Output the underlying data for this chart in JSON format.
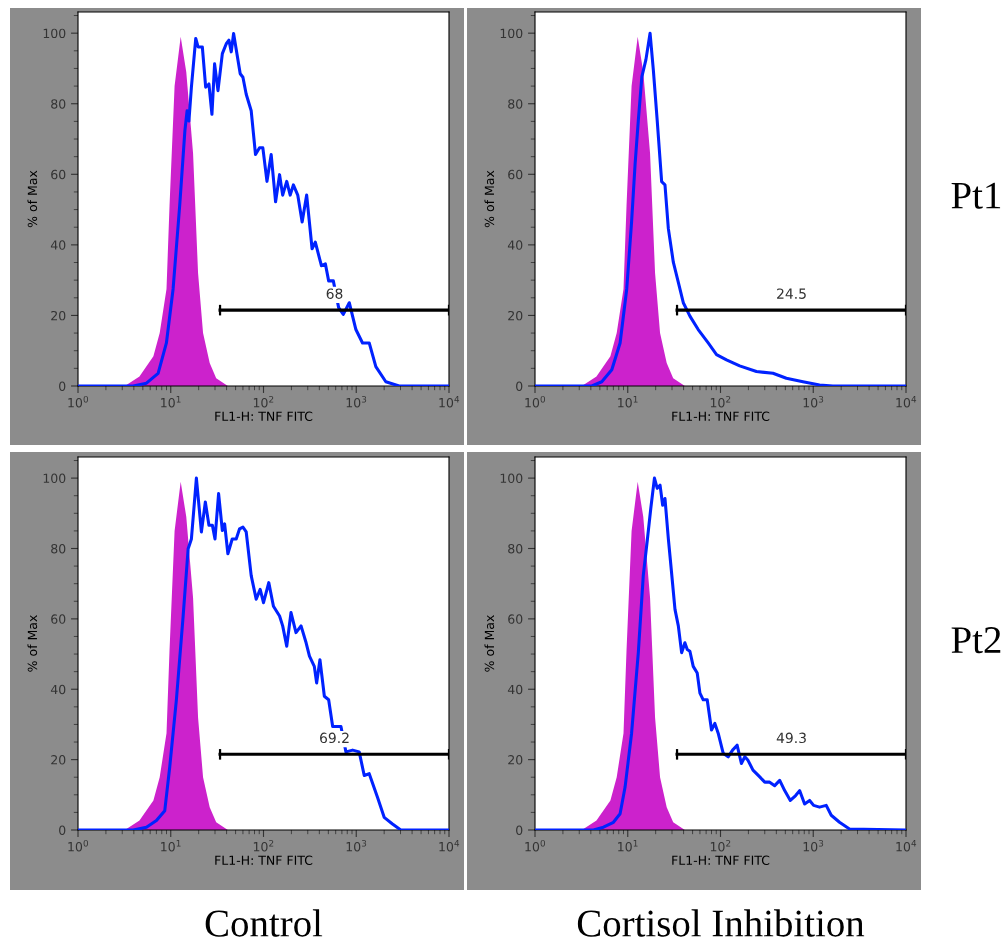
{
  "chart_data": [
    {
      "type": "line",
      "xlabel": "FL1-H: TNF FITC",
      "ylabel": "% of Max",
      "log": "x",
      "xlim": [
        1,
        10000
      ],
      "ylim": [
        0,
        106
      ],
      "xticks": [
        {
          "value": 1,
          "label": "10$^{0}$"
        },
        {
          "value": 10,
          "label": "10$^{1}$"
        },
        {
          "value": 100,
          "label": "10$^{2}$"
        },
        {
          "value": 1000,
          "label": "10$^{3}$"
        },
        {
          "value": 10000,
          "label": "10$^{4}$"
        }
      ],
      "yticks": [
        0,
        20,
        40,
        60,
        80,
        100
      ],
      "annotations": [
        "68"
      ],
      "series": [
        {
          "type": "area",
          "color": "#cc22cc",
          "x": [
            3.2,
            4.6,
            6.5,
            7.6,
            9.0,
            9.7,
            11.0,
            12.8,
            14.7,
            17.4,
            19.7,
            22.3,
            26.3,
            30.9,
            41.3
          ],
          "values": [
            0,
            2.7,
            8.4,
            15,
            27.5,
            51,
            85,
            99,
            89,
            66,
            32,
            15,
            6.5,
            2.2,
            0
          ]
        },
        {
          "type": "line",
          "color": "#0022ff",
          "x": [
            1,
            3.94,
            5.47,
            7.31,
            8.98,
            10.6,
            12.5,
            14.2,
            15.0,
            15.7,
            16.7,
            18.6,
            19.7,
            21.9,
            23.8,
            25.8,
            27.8,
            29.7,
            32.3,
            36.0,
            39.7,
            42.4,
            44.9,
            47.6,
            56.1,
            60.0,
            65.1,
            73.7,
            82.0,
            90.6,
            98.4,
            109,
            121,
            135,
            149,
            161,
            178,
            194,
            210,
            234,
            261,
            292,
            334,
            362,
            394,
            421,
            465,
            504,
            566,
            646,
            725,
            841,
            991,
            1169,
            1380,
            1626,
            2084,
            2900,
            10000
          ],
          "values": [
            0,
            0,
            0.8,
            3.6,
            12.2,
            27.5,
            51.3,
            72.3,
            78,
            75.1,
            84.7,
            98.5,
            96.1,
            96.1,
            84.7,
            85.6,
            77,
            91.3,
            83.7,
            94.2,
            97,
            98,
            94.7,
            99.9,
            88.5,
            87.5,
            82.7,
            78,
            65.6,
            67.5,
            67.5,
            58,
            65.6,
            52.2,
            59.9,
            54.1,
            58,
            54.1,
            57,
            54.1,
            46.5,
            54.1,
            38.9,
            40.8,
            37,
            34.1,
            34.6,
            29.8,
            29.8,
            22.2,
            20.3,
            23.6,
            16,
            12.2,
            12.2,
            5.5,
            1.2,
            0,
            0
          ]
        },
        {
          "type": "line",
          "color": "#000000",
          "x": [
            34,
            10000
          ],
          "values": [
            21.5,
            21.5
          ],
          "errors": [
            1.5,
            1.5
          ]
        }
      ]
    },
    {
      "type": "line",
      "xlabel": "FL1-H: TNF FITC",
      "ylabel": "% of Max",
      "log": "x",
      "xlim": [
        1,
        10000
      ],
      "ylim": [
        0,
        106
      ],
      "xticks": [
        {
          "value": 1,
          "label": "10$^{0}$"
        },
        {
          "value": 10,
          "label": "10$^{1}$"
        },
        {
          "value": 100,
          "label": "10$^{2}$"
        },
        {
          "value": 1000,
          "label": "10$^{3}$"
        },
        {
          "value": 10000,
          "label": "10$^{4}$"
        }
      ],
      "yticks": [
        0,
        20,
        40,
        60,
        80,
        100
      ],
      "y2label": "Pt1",
      "annotations": [
        "24.5"
      ],
      "series": [
        {
          "type": "area",
          "color": "#cc22cc",
          "x": [
            3.2,
            4.6,
            6.5,
            7.6,
            9.0,
            9.7,
            11.0,
            12.8,
            14.7,
            17.4,
            19.7,
            22.3,
            26.3,
            30.9,
            41.3
          ],
          "values": [
            0,
            2.7,
            8.4,
            15,
            27.5,
            51,
            85,
            99,
            89,
            66,
            32,
            15,
            6.5,
            2.2,
            0
          ]
        },
        {
          "type": "line",
          "color": "#0022ff",
          "x": [
            1,
            4.1,
            5.25,
            6.73,
            8.27,
            9.75,
            11.0,
            12.0,
            13.0,
            14.2,
            15.7,
            17.4,
            18.9,
            20.8,
            23.2,
            25.2,
            27.4,
            31.0,
            35.1,
            39.7,
            46.8,
            57.5,
            73.7,
            90.6,
            116,
            161,
            244,
            368,
            513,
            774,
            1169,
            1626,
            10000
          ],
          "values": [
            0,
            0,
            1.2,
            4.6,
            12.2,
            27.5,
            46.5,
            62.9,
            75.3,
            87.7,
            92.5,
            100,
            89.4,
            75.1,
            57.9,
            57,
            44.6,
            35.1,
            29.4,
            23.6,
            19.8,
            16,
            12.2,
            8.9,
            7.4,
            5.7,
            4.1,
            3.6,
            2.2,
            1.2,
            0.3,
            0,
            0
          ]
        },
        {
          "type": "line",
          "color": "#000000",
          "x": [
            34,
            10000
          ],
          "values": [
            21.5,
            21.5
          ],
          "errors": [
            1.5,
            1.5
          ]
        }
      ]
    },
    {
      "type": "line",
      "xlabel": "FL1-H: TNF FITC",
      "ylabel": "% of Max",
      "log": "x",
      "xlim": [
        1,
        10000
      ],
      "ylim": [
        0,
        106
      ],
      "xticks": [
        {
          "value": 1,
          "label": "10$^{0}$"
        },
        {
          "value": 10,
          "label": "10$^{1}$"
        },
        {
          "value": 100,
          "label": "10$^{2}$"
        },
        {
          "value": 1000,
          "label": "10$^{3}$"
        },
        {
          "value": 10000,
          "label": "10$^{4}$"
        }
      ],
      "yticks": [
        0,
        20,
        40,
        60,
        80,
        100
      ],
      "annotations": [
        "69.2",
        "Control"
      ],
      "series": [
        {
          "type": "area",
          "color": "#cc22cc",
          "x": [
            3.2,
            4.6,
            6.5,
            7.6,
            9.0,
            9.7,
            11.0,
            12.8,
            14.7,
            17.4,
            19.7,
            22.3,
            26.3,
            30.9,
            41.3
          ],
          "values": [
            0,
            2.7,
            8.4,
            15,
            27.5,
            51,
            85,
            99,
            89,
            66,
            32,
            15,
            6.5,
            2.2,
            0
          ]
        },
        {
          "type": "line",
          "color": "#0022ff",
          "x": [
            1,
            3.94,
            5.47,
            7.01,
            8.62,
            9.75,
            11.5,
            13.6,
            15.4,
            16.7,
            18.9,
            21.4,
            23.6,
            25.8,
            28.1,
            30.0,
            32.8,
            36.0,
            38.1,
            41.3,
            46.0,
            50.8,
            55.2,
            60.0,
            65.1,
            73.7,
            83.4,
            92.1,
            100,
            114,
            128,
            149,
            161,
            178,
            198,
            224,
            254,
            288,
            313,
            353,
            374,
            406,
            453,
            504,
            557,
            684,
            774,
            914,
            1076,
            1219,
            1380,
            1694,
            2000,
            2459,
            3020,
            10000
          ],
          "values": [
            0,
            0,
            0.8,
            2.7,
            5.5,
            17.9,
            37,
            60.8,
            79.9,
            82.7,
            100,
            84.7,
            93.2,
            86.6,
            86.6,
            82.7,
            95.6,
            85.1,
            87,
            78.5,
            82.7,
            82.7,
            85.6,
            86.1,
            84.7,
            72.3,
            65.6,
            68.4,
            64.6,
            70.3,
            63.6,
            60.8,
            58,
            52.2,
            61.8,
            56.1,
            58,
            53.2,
            49.4,
            46.5,
            41.8,
            48.4,
            38,
            37,
            29.4,
            29.4,
            22.2,
            22.7,
            22.2,
            15.5,
            16,
            9.3,
            3.6,
            1.7,
            0,
            0
          ]
        },
        {
          "type": "line",
          "color": "#000000",
          "x": [
            34,
            10000
          ],
          "values": [
            21.5,
            21.5
          ],
          "errors": [
            1.5,
            1.5
          ]
        }
      ]
    },
    {
      "type": "line",
      "xlabel": "FL1-H: TNF FITC",
      "ylabel": "% of Max",
      "log": "x",
      "xlim": [
        1,
        10000
      ],
      "ylim": [
        0,
        106
      ],
      "xticks": [
        {
          "value": 1,
          "label": "10$^{0}$"
        },
        {
          "value": 10,
          "label": "10$^{1}$"
        },
        {
          "value": 100,
          "label": "10$^{2}$"
        },
        {
          "value": 1000,
          "label": "10$^{3}$"
        },
        {
          "value": 10000,
          "label": "10$^{4}$"
        }
      ],
      "yticks": [
        0,
        20,
        40,
        60,
        80,
        100
      ],
      "y2label": "Pt2",
      "annotations": [
        "49.3",
        "Cortisol Inhibition"
      ],
      "series": [
        {
          "type": "area",
          "color": "#cc22cc",
          "x": [
            3.2,
            4.6,
            6.5,
            7.6,
            9.0,
            9.7,
            11.0,
            12.8,
            14.7,
            17.4,
            19.7,
            22.3,
            26.3,
            30.9,
            41.3
          ],
          "values": [
            0,
            2.7,
            8.4,
            15,
            27.5,
            51,
            85,
            99,
            89,
            66,
            32,
            15,
            6.5,
            2.2,
            0
          ]
        },
        {
          "type": "line",
          "color": "#0022ff",
          "x": [
            1,
            4.27,
            5.47,
            7.01,
            8.27,
            9.36,
            11.0,
            13.0,
            14.7,
            16.3,
            17.7,
            19.4,
            20.8,
            22.3,
            23.8,
            25.2,
            27.4,
            29.2,
            32.3,
            35.1,
            38.1,
            41.3,
            43.8,
            46.8,
            50.8,
            56.1,
            60.0,
            65.1,
            71.9,
            80.0,
            86.9,
            94.4,
            107,
            121,
            135,
            151,
            168,
            183,
            198,
            224,
            265,
            300,
            339,
            384,
            435,
            492,
            566,
            646,
            713,
            807,
            914,
            1009,
            1169,
            1380,
            1563,
            1919,
            2459,
            10000
          ],
          "values": [
            0,
            0,
            0.8,
            2.2,
            4.6,
            12.2,
            27.5,
            50.4,
            72.3,
            82.7,
            91.3,
            100,
            97.1,
            98,
            92.3,
            94.2,
            82.7,
            75.1,
            62.7,
            58,
            50.4,
            53.2,
            51.3,
            50.8,
            46.5,
            44.6,
            38.9,
            37,
            37,
            28.4,
            30.3,
            27.5,
            21.8,
            20.8,
            22.7,
            24.1,
            18.9,
            20.8,
            19.8,
            17,
            15.1,
            13.6,
            13.6,
            12.6,
            14.1,
            11.2,
            8.4,
            9.8,
            11.2,
            7.4,
            8.4,
            7,
            6.5,
            7,
            4.2,
            2.2,
            0.3,
            0
          ]
        },
        {
          "type": "line",
          "color": "#000000",
          "x": [
            34,
            10000
          ],
          "values": [
            21.5,
            21.5
          ],
          "errors": [
            1.5,
            1.5
          ]
        }
      ]
    }
  ]
}
